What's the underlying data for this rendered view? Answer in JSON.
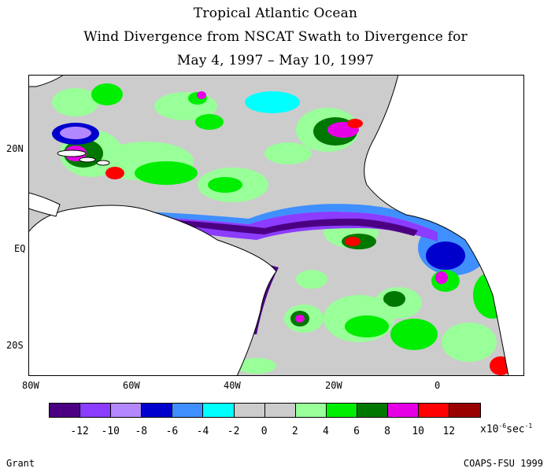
{
  "title": {
    "line1": "Tropical Atlantic Ocean",
    "line2": "Wind Divergence from NSCAT Swath to Divergence for",
    "line3": "May 4, 1997 – May 10, 1997"
  },
  "map": {
    "lat_labels": [
      "20N",
      "EQ",
      "20S"
    ],
    "lon_labels": [
      "80W",
      "60W",
      "40W",
      "20W",
      "0"
    ],
    "colors": {
      "ocean_background": "#cccccc",
      "land": "#ffffff",
      "convergence_band": "#5a1fa0",
      "border": "#000000"
    }
  },
  "colorbar": {
    "colors": [
      "#4b0082",
      "#8b3cff",
      "#b388ff",
      "#0000cd",
      "#3f8fff",
      "#00ffff",
      "#cccccc",
      "#cccccc",
      "#99ff99",
      "#00ee00",
      "#007700",
      "#e600e6",
      "#ff0000",
      "#990000"
    ],
    "labels": [
      "-12",
      "-10",
      "-8",
      "-6",
      "-4",
      "-2",
      "0",
      "2",
      "4",
      "6",
      "8",
      "10",
      "12"
    ],
    "units_prefix": "x10",
    "units_exp": "-6",
    "units_suffix": "sec",
    "units_suffix_exp": "-1"
  },
  "footer": {
    "left": "Grant",
    "right": "COAPS-FSU 1999"
  }
}
